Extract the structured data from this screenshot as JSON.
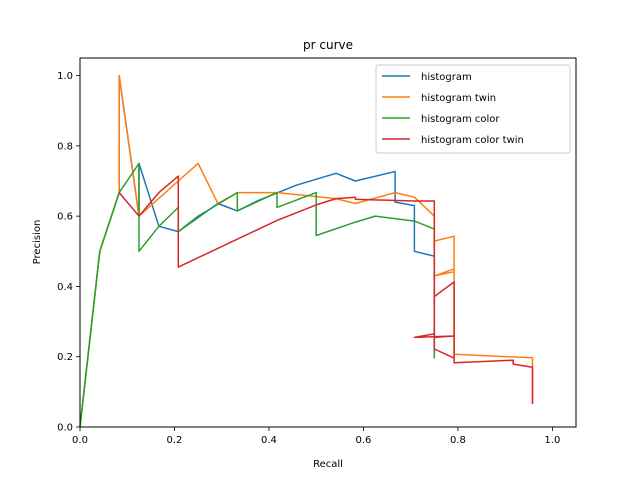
{
  "chart_data": {
    "type": "line",
    "title": "pr curve",
    "xlabel": "Recall",
    "ylabel": "Precision",
    "xlim": [
      0.0,
      1.05
    ],
    "ylim": [
      0.0,
      1.05
    ],
    "xticks": [
      "0.0",
      "0.2",
      "0.4",
      "0.6",
      "0.8",
      "1.0"
    ],
    "yticks": [
      "0.0",
      "0.2",
      "0.4",
      "0.6",
      "0.8",
      "1.0"
    ],
    "grid": false,
    "legend_position": "top-right",
    "series": [
      {
        "name": "histogram",
        "color": "#1f77b4",
        "points": [
          [
            0.0,
            0.0
          ],
          [
            0.042,
            0.5
          ],
          [
            0.083,
            0.667
          ],
          [
            0.083,
            1.0
          ],
          [
            0.125,
            0.6
          ],
          [
            0.125,
            0.75
          ],
          [
            0.167,
            0.571
          ],
          [
            0.208,
            0.556
          ],
          [
            0.292,
            0.636
          ],
          [
            0.333,
            0.615
          ],
          [
            0.375,
            0.643
          ],
          [
            0.458,
            0.688
          ],
          [
            0.542,
            0.722
          ],
          [
            0.583,
            0.7
          ],
          [
            0.667,
            0.727
          ],
          [
            0.667,
            0.64
          ],
          [
            0.708,
            0.63
          ],
          [
            0.708,
            0.5
          ],
          [
            0.75,
            0.486
          ],
          [
            0.75,
            0.2
          ]
        ]
      },
      {
        "name": "histogram twin",
        "color": "#ff7f0e",
        "points": [
          [
            0.0,
            0.0
          ],
          [
            0.042,
            0.5
          ],
          [
            0.083,
            0.667
          ],
          [
            0.083,
            1.0
          ],
          [
            0.125,
            0.6
          ],
          [
            0.208,
            0.7
          ],
          [
            0.25,
            0.75
          ],
          [
            0.292,
            0.636
          ],
          [
            0.333,
            0.667
          ],
          [
            0.417,
            0.667
          ],
          [
            0.542,
            0.65
          ],
          [
            0.583,
            0.636
          ],
          [
            0.667,
            0.667
          ],
          [
            0.708,
            0.654
          ],
          [
            0.75,
            0.6
          ],
          [
            0.75,
            0.529
          ],
          [
            0.792,
            0.543
          ],
          [
            0.792,
            0.442
          ],
          [
            0.75,
            0.43
          ],
          [
            0.792,
            0.45
          ],
          [
            0.792,
            0.207
          ],
          [
            0.958,
            0.197
          ],
          [
            0.958,
            0.066
          ]
        ]
      },
      {
        "name": "histogram color",
        "color": "#2ca02c",
        "points": [
          [
            0.0,
            0.0
          ],
          [
            0.042,
            0.5
          ],
          [
            0.083,
            0.667
          ],
          [
            0.125,
            0.75
          ],
          [
            0.125,
            0.5
          ],
          [
            0.167,
            0.571
          ],
          [
            0.208,
            0.625
          ],
          [
            0.208,
            0.556
          ],
          [
            0.25,
            0.6
          ],
          [
            0.333,
            0.667
          ],
          [
            0.333,
            0.615
          ],
          [
            0.417,
            0.667
          ],
          [
            0.417,
            0.625
          ],
          [
            0.5,
            0.667
          ],
          [
            0.5,
            0.545
          ],
          [
            0.583,
            0.583
          ],
          [
            0.625,
            0.6
          ],
          [
            0.708,
            0.586
          ],
          [
            0.75,
            0.563
          ],
          [
            0.75,
            0.195
          ]
        ]
      },
      {
        "name": "histogram color twin",
        "color": "#d62728",
        "points": [
          [
            0.083,
            0.667
          ],
          [
            0.125,
            0.6
          ],
          [
            0.167,
            0.667
          ],
          [
            0.208,
            0.714
          ],
          [
            0.208,
            0.455
          ],
          [
            0.417,
            0.588
          ],
          [
            0.5,
            0.632
          ],
          [
            0.542,
            0.65
          ],
          [
            0.583,
            0.654
          ],
          [
            0.583,
            0.648
          ],
          [
            0.708,
            0.643
          ],
          [
            0.75,
            0.643
          ],
          [
            0.75,
            0.222
          ],
          [
            0.792,
            0.196
          ],
          [
            0.792,
            0.413
          ],
          [
            0.75,
            0.371
          ],
          [
            0.792,
            0.413
          ],
          [
            0.792,
            0.259
          ],
          [
            0.708,
            0.255
          ],
          [
            0.75,
            0.265
          ],
          [
            0.75,
            0.255
          ],
          [
            0.792,
            0.259
          ],
          [
            0.792,
            0.183
          ],
          [
            0.917,
            0.19
          ],
          [
            0.917,
            0.179
          ],
          [
            0.958,
            0.17
          ],
          [
            0.958,
            0.066
          ]
        ]
      }
    ]
  }
}
